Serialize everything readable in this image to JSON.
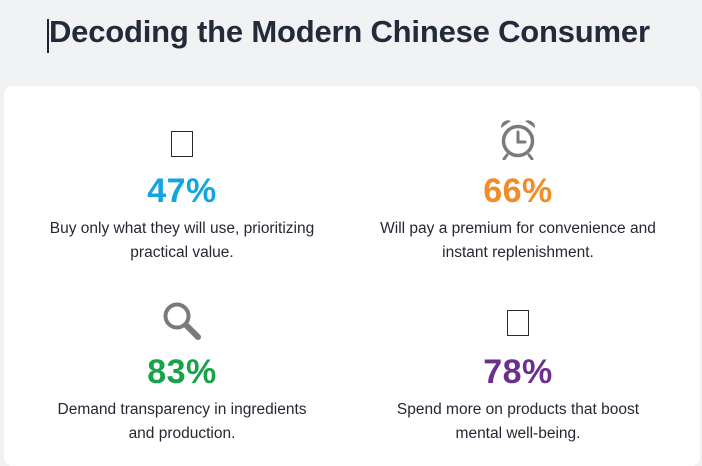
{
  "header": {
    "title": "Decoding the Modern Chinese Consumer"
  },
  "stats": [
    {
      "value": "47%",
      "line1": "Buy only what they will use, prioritizing",
      "line2": "practical value.",
      "icon": "placeholder-box-icon",
      "color": "#12a5e0"
    },
    {
      "value": "66%",
      "line1": "Will pay a premium for convenience and",
      "line2": "instant replenishment.",
      "icon": "alarm-clock-icon",
      "color": "#f28c28"
    },
    {
      "value": "83%",
      "line1": "Demand transparency in ingredients",
      "line2": "and production.",
      "icon": "magnifier-icon",
      "color": "#16a34a"
    },
    {
      "value": "78%",
      "line1": "Spend more on products that boost",
      "line2": "mental well-being.",
      "icon": "placeholder-box-icon",
      "color": "#6b2f8e"
    }
  ]
}
